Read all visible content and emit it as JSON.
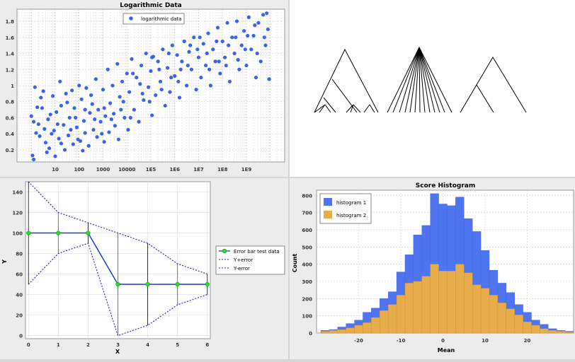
{
  "chart_data": [
    {
      "type": "scatter",
      "title": "Logarithmic Data",
      "xlabel": "",
      "ylabel": "",
      "x_scale": "log",
      "x_tick_labels": [
        "10",
        "100",
        "1000",
        "10000",
        "1E5",
        "1E6",
        "1E7",
        "1E8",
        "1E9"
      ],
      "y_ticks": [
        "0.2",
        "0.4",
        "0.6",
        "0.8",
        "1",
        "1.2",
        "1.4",
        "1.6",
        "1.8"
      ],
      "ylim": [
        0.05,
        1.95
      ],
      "xlim_log10": [
        -0.6,
        10.6
      ],
      "legend": [
        "logarithmic data"
      ],
      "legend_position": "top-center",
      "grid": true,
      "series": [
        {
          "name": "logarithmic data",
          "color": "#3b62e8",
          "points": [
            [
              0.0,
              0.62
            ],
            [
              0.05,
              0.13
            ],
            [
              0.1,
              0.08
            ],
            [
              0.15,
              0.98
            ],
            [
              0.2,
              0.41
            ],
            [
              0.3,
              0.52
            ],
            [
              0.35,
              0.37
            ],
            [
              0.45,
              0.72
            ],
            [
              0.5,
              0.93
            ],
            [
              0.55,
              0.46
            ],
            [
              0.6,
              0.29
            ],
            [
              0.7,
              0.58
            ],
            [
              0.75,
              0.22
            ],
            [
              0.8,
              0.64
            ],
            [
              0.9,
              0.87
            ],
            [
              0.95,
              0.44
            ],
            [
              1.0,
              0.12
            ],
            [
              1.05,
              0.67
            ],
            [
              1.15,
              0.34
            ],
            [
              1.2,
              1.05
            ],
            [
              1.25,
              0.75
            ],
            [
              1.35,
              0.51
            ],
            [
              1.4,
              0.2
            ],
            [
              1.5,
              0.79
            ],
            [
              1.55,
              0.38
            ],
            [
              1.6,
              0.6
            ],
            [
              1.7,
              0.94
            ],
            [
              1.75,
              0.27
            ],
            [
              1.8,
              0.72
            ],
            [
              1.9,
              0.48
            ],
            [
              2.0,
              1.0
            ],
            [
              2.05,
              0.31
            ],
            [
              2.1,
              0.83
            ],
            [
              2.2,
              0.56
            ],
            [
              2.25,
              0.41
            ],
            [
              2.3,
              0.97
            ],
            [
              2.4,
              0.25
            ],
            [
              2.45,
              0.66
            ],
            [
              2.5,
              0.88
            ],
            [
              2.6,
              0.45
            ],
            [
              2.7,
              1.08
            ],
            [
              2.75,
              0.36
            ],
            [
              2.8,
              0.7
            ],
            [
              2.9,
              0.55
            ],
            [
              3.0,
              0.95
            ],
            [
              3.05,
              0.3
            ],
            [
              3.1,
              0.62
            ],
            [
              3.2,
              1.2
            ],
            [
              3.25,
              0.42
            ],
            [
              3.3,
              0.78
            ],
            [
              3.4,
              1.0
            ],
            [
              3.5,
              0.5
            ],
            [
              3.6,
              1.27
            ],
            [
              3.65,
              0.33
            ],
            [
              3.7,
              0.86
            ],
            [
              3.8,
              1.05
            ],
            [
              3.9,
              0.6
            ],
            [
              4.0,
              1.15
            ],
            [
              4.05,
              0.45
            ],
            [
              4.1,
              0.92
            ],
            [
              4.2,
              1.33
            ],
            [
              4.3,
              0.7
            ],
            [
              4.4,
              1.1
            ],
            [
              4.5,
              0.55
            ],
            [
              4.6,
              1.25
            ],
            [
              4.7,
              0.82
            ],
            [
              4.8,
              1.4
            ],
            [
              4.9,
              0.98
            ],
            [
              5.0,
              1.18
            ],
            [
              5.05,
              0.63
            ],
            [
              5.1,
              1.36
            ],
            [
              5.2,
              0.88
            ],
            [
              5.3,
              1.3
            ],
            [
              5.4,
              1.05
            ],
            [
              5.5,
              1.45
            ],
            [
              5.6,
              0.75
            ],
            [
              5.7,
              1.22
            ],
            [
              5.8,
              0.92
            ],
            [
              5.9,
              1.5
            ],
            [
              6.0,
              1.12
            ],
            [
              6.1,
              1.38
            ],
            [
              6.2,
              0.85
            ],
            [
              6.3,
              1.3
            ],
            [
              6.4,
              1.55
            ],
            [
              6.5,
              1.0
            ],
            [
              6.6,
              1.42
            ],
            [
              6.7,
              1.2
            ],
            [
              6.8,
              1.6
            ],
            [
              6.9,
              0.95
            ],
            [
              7.0,
              1.35
            ],
            [
              7.1,
              1.1
            ],
            [
              7.2,
              1.52
            ],
            [
              7.3,
              1.25
            ],
            [
              7.4,
              1.65
            ],
            [
              7.5,
              1.0
            ],
            [
              7.6,
              1.45
            ],
            [
              7.7,
              1.3
            ],
            [
              7.8,
              1.72
            ],
            [
              7.9,
              1.15
            ],
            [
              8.0,
              1.55
            ],
            [
              8.1,
              1.35
            ],
            [
              8.2,
              1.78
            ],
            [
              8.3,
              1.05
            ],
            [
              8.4,
              1.6
            ],
            [
              8.5,
              1.4
            ],
            [
              8.6,
              1.8
            ],
            [
              8.7,
              1.2
            ],
            [
              8.8,
              1.5
            ],
            [
              8.9,
              1.68
            ],
            [
              9.0,
              1.25
            ],
            [
              9.1,
              1.85
            ],
            [
              9.2,
              1.45
            ],
            [
              9.3,
              1.62
            ],
            [
              9.4,
              1.1
            ],
            [
              9.5,
              1.78
            ],
            [
              9.6,
              1.3
            ],
            [
              9.7,
              1.88
            ],
            [
              9.8,
              1.5
            ],
            [
              9.9,
              1.7
            ],
            [
              9.95,
              1.08
            ],
            [
              0.25,
              0.73
            ],
            [
              0.65,
              0.17
            ],
            [
              1.1,
              0.52
            ],
            [
              1.45,
              0.9
            ],
            [
              1.85,
              0.6
            ],
            [
              2.15,
              0.19
            ],
            [
              2.55,
              0.77
            ],
            [
              2.95,
              0.4
            ],
            [
              3.35,
              0.58
            ],
            [
              3.75,
              0.7
            ],
            [
              4.15,
              0.6
            ],
            [
              4.55,
              1.02
            ],
            [
              4.95,
              0.8
            ],
            [
              5.35,
              1.2
            ],
            [
              5.75,
              1.4
            ],
            [
              6.15,
              1.05
            ],
            [
              6.55,
              1.25
            ],
            [
              6.95,
              1.45
            ],
            [
              7.35,
              1.4
            ],
            [
              7.75,
              1.55
            ],
            [
              8.15,
              1.25
            ],
            [
              8.55,
              1.6
            ],
            [
              8.95,
              1.45
            ],
            [
              9.35,
              1.75
            ],
            [
              9.75,
              1.6
            ],
            [
              9.85,
              1.9
            ],
            [
              9.45,
              1.4
            ],
            [
              9.05,
              1.62
            ],
            [
              8.65,
              1.32
            ],
            [
              8.25,
              1.5
            ],
            [
              7.85,
              1.3
            ],
            [
              7.45,
              1.2
            ],
            [
              7.05,
              1.6
            ],
            [
              6.65,
              1.5
            ],
            [
              6.25,
              1.2
            ],
            [
              5.85,
              1.1
            ],
            [
              5.45,
              0.95
            ],
            [
              5.05,
              1.35
            ],
            [
              4.65,
              0.9
            ],
            [
              4.25,
              1.15
            ],
            [
              3.85,
              0.8
            ],
            [
              3.45,
              0.65
            ],
            [
              3.05,
              0.72
            ],
            [
              2.65,
              0.58
            ],
            [
              2.25,
              0.7
            ],
            [
              1.95,
              0.33
            ],
            [
              1.65,
              0.45
            ],
            [
              1.25,
              0.28
            ],
            [
              0.85,
              0.4
            ],
            [
              0.4,
              0.85
            ],
            [
              0.1,
              0.55
            ]
          ]
        }
      ]
    },
    {
      "type": "line",
      "title": "",
      "xlabel": "X",
      "ylabel": "Y",
      "x_ticks": [
        "0",
        "1",
        "2",
        "3",
        "4",
        "5",
        "6"
      ],
      "y_ticks": [
        "0",
        "20",
        "40",
        "60",
        "80",
        "100",
        "120",
        "140"
      ],
      "xlim": [
        -0.1,
        6.1
      ],
      "ylim": [
        -3,
        150
      ],
      "legend": [
        "Error bar test data",
        "Y+error",
        "Y-error"
      ],
      "legend_position": "right",
      "grid": true,
      "x": [
        0,
        1,
        2,
        3,
        4,
        5,
        6
      ],
      "series": [
        {
          "name": "Error bar test data",
          "values": [
            100,
            100,
            100,
            50,
            50,
            50,
            50
          ],
          "color": "#1a3bd6"
        },
        {
          "name": "Y+error",
          "values": [
            150,
            120,
            110,
            100,
            90,
            70,
            60
          ],
          "color": "#1a1ac8"
        },
        {
          "name": "Y-error",
          "values": [
            50,
            80,
            90,
            0,
            10,
            30,
            40
          ],
          "color": "#1a1ac8"
        }
      ]
    },
    {
      "type": "bar",
      "title": "Score Histogram",
      "xlabel": "Mean",
      "ylabel": "Count",
      "x_ticks": [
        "-20",
        "-10",
        "0",
        "10",
        "20"
      ],
      "y_ticks": [
        "0",
        "100",
        "200",
        "300",
        "400",
        "500",
        "600",
        "700",
        "800"
      ],
      "xlim": [
        -30,
        31
      ],
      "ylim": [
        0,
        830
      ],
      "bin_width": 2,
      "legend": [
        "histogram 1",
        "histogram 2"
      ],
      "legend_position": "top-left",
      "grid": true,
      "bin_left_edges": [
        -29,
        -27,
        -25,
        -23,
        -21,
        -19,
        -17,
        -15,
        -13,
        -11,
        -9,
        -7,
        -5,
        -3,
        -1,
        1,
        3,
        5,
        7,
        9,
        11,
        13,
        15,
        17,
        19,
        21,
        23,
        25,
        27,
        29
      ],
      "series": [
        {
          "name": "histogram 1",
          "color": "#4f74ef",
          "values": [
            15,
            20,
            35,
            55,
            75,
            120,
            145,
            200,
            240,
            355,
            455,
            570,
            625,
            810,
            750,
            740,
            790,
            665,
            590,
            480,
            365,
            290,
            235,
            165,
            120,
            75,
            50,
            25,
            15,
            10
          ]
        },
        {
          "name": "histogram 2",
          "color": "#e8ad4a",
          "values": [
            10,
            15,
            20,
            30,
            45,
            60,
            90,
            130,
            165,
            220,
            290,
            300,
            330,
            400,
            360,
            360,
            400,
            350,
            280,
            260,
            220,
            175,
            140,
            105,
            65,
            45,
            25,
            15,
            10,
            5
          ]
        }
      ]
    }
  ]
}
